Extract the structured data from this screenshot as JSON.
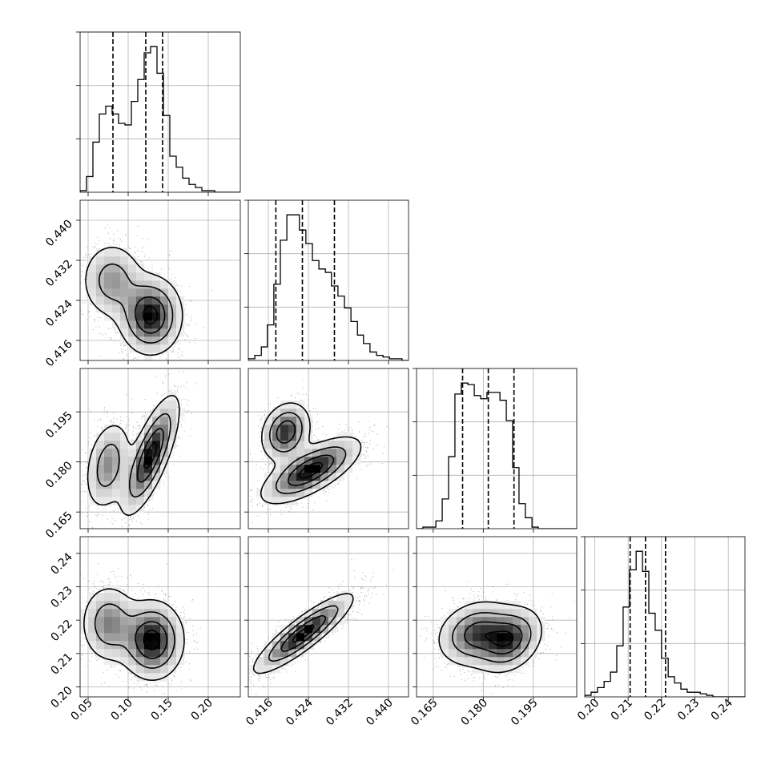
{
  "chart_data": {
    "type": "corner",
    "colors": {
      "line": "#000000",
      "grid": "#b0b0b0",
      "scatter": "#000000"
    },
    "grid": true,
    "parameters": [
      {
        "range": [
          0.04,
          0.24
        ],
        "ticks": [
          0.05,
          0.1,
          0.15,
          0.2
        ],
        "tick_labels": [
          "0.05",
          "0.10",
          "0.15",
          "0.20"
        ]
      },
      {
        "range": [
          0.412,
          0.444
        ],
        "ticks": [
          0.416,
          0.424,
          0.432,
          0.44
        ],
        "tick_labels": [
          "0.416",
          "0.424",
          "0.432",
          "0.440"
        ]
      },
      {
        "range": [
          0.16,
          0.208
        ],
        "ticks": [
          0.165,
          0.18,
          0.195
        ],
        "tick_labels": [
          "0.165",
          "0.180",
          "0.195"
        ]
      },
      {
        "range": [
          0.197,
          0.245
        ],
        "ticks": [
          0.2,
          0.21,
          0.22,
          0.23,
          0.24
        ],
        "tick_labels": [
          "0.20",
          "0.21",
          "0.22",
          "0.23",
          "0.24"
        ]
      }
    ],
    "marginals": [
      {
        "bins": [
          0.04,
          0.048,
          0.056,
          0.064,
          0.072,
          0.08,
          0.088,
          0.096,
          0.104,
          0.112,
          0.12,
          0.128,
          0.136,
          0.144,
          0.152,
          0.16,
          0.168,
          0.176,
          0.184,
          0.192,
          0.2,
          0.208,
          0.216,
          0.224,
          0.232,
          0.24
        ],
        "counts": [
          1,
          10,
          32,
          50,
          55,
          50,
          44,
          43,
          58,
          72,
          89,
          93,
          76,
          49,
          23,
          16,
          9,
          5,
          3,
          1,
          1,
          0,
          0,
          0,
          0
        ],
        "quantiles": [
          0.081,
          0.122,
          0.143
        ]
      },
      {
        "bins": [
          0.412,
          0.4133,
          0.4146,
          0.4158,
          0.4171,
          0.4184,
          0.4197,
          0.421,
          0.4222,
          0.4235,
          0.4248,
          0.4261,
          0.4274,
          0.4286,
          0.4299,
          0.4312,
          0.4325,
          0.4338,
          0.435,
          0.4363,
          0.4376,
          0.4389,
          0.4402,
          0.4414,
          0.4427,
          0.444
        ],
        "counts": [
          1,
          3,
          8,
          21,
          45,
          71,
          86,
          86,
          77,
          69,
          59,
          54,
          52,
          44,
          38,
          31,
          23,
          15,
          10,
          5,
          3,
          2,
          1,
          1,
          0
        ],
        "quantiles": [
          0.4175,
          0.4228,
          0.4292
        ]
      },
      {
        "bins": [
          0.16,
          0.1619,
          0.1638,
          0.1658,
          0.1677,
          0.1696,
          0.1715,
          0.1734,
          0.1754,
          0.1773,
          0.1792,
          0.1811,
          0.183,
          0.185,
          0.1869,
          0.1888,
          0.1907,
          0.1926,
          0.1946,
          0.1965,
          0.1984,
          0.2003,
          0.2022,
          0.2042,
          0.2061,
          0.208
        ],
        "counts": [
          0,
          1,
          1,
          5,
          19,
          46,
          86,
          93,
          92,
          85,
          83,
          87,
          87,
          82,
          69,
          39,
          16,
          7,
          1,
          0,
          0,
          0,
          0,
          0,
          0
        ],
        "quantiles": [
          0.1738,
          0.1815,
          0.1892
        ]
      },
      {
        "bins": [
          0.197,
          0.1989,
          0.2008,
          0.2028,
          0.2047,
          0.2066,
          0.2085,
          0.2104,
          0.2124,
          0.2143,
          0.2162,
          0.2181,
          0.22,
          0.222,
          0.2239,
          0.2258,
          0.2277,
          0.2296,
          0.2316,
          0.2335,
          0.2354,
          0.2373,
          0.2392,
          0.2412,
          0.2431,
          0.245
        ],
        "counts": [
          1,
          3,
          6,
          10,
          16,
          33,
          58,
          82,
          94,
          81,
          54,
          43,
          25,
          13,
          9,
          5,
          3,
          3,
          2,
          1,
          0,
          0,
          0,
          0,
          0
        ],
        "quantiles": [
          0.2106,
          0.2152,
          0.2212
        ]
      }
    ],
    "joint": [
      {
        "x": 0,
        "y": 1,
        "modes": [
          {
            "w": 0.35,
            "mx": [
              0.08,
              0.428
            ],
            "sx": [
              0.02,
              0.004
            ],
            "r": 0.0
          },
          {
            "w": 0.65,
            "mx": [
              0.128,
              0.421
            ],
            "sx": [
              0.02,
              0.004
            ],
            "r": 0.0
          }
        ]
      },
      {
        "x": 0,
        "y": 2,
        "modes": [
          {
            "w": 0.35,
            "mx": [
              0.075,
              0.179
            ],
            "sx": [
              0.015,
              0.007
            ],
            "r": 0.3
          },
          {
            "w": 0.65,
            "mx": [
              0.128,
              0.182
            ],
            "sx": [
              0.018,
              0.009
            ],
            "r": 0.75
          }
        ]
      },
      {
        "x": 0,
        "y": 3,
        "modes": [
          {
            "w": 0.35,
            "mx": [
              0.076,
              0.219
            ],
            "sx": [
              0.018,
              0.006
            ],
            "r": 0.0
          },
          {
            "w": 0.65,
            "mx": [
              0.13,
              0.214
            ],
            "sx": [
              0.02,
              0.006
            ],
            "r": 0.0
          }
        ]
      },
      {
        "x": 1,
        "y": 2,
        "modes": [
          {
            "w": 0.35,
            "mx": [
              0.4195,
              0.189
            ],
            "sx": [
              0.0025,
              0.0045
            ],
            "r": 0.2
          },
          {
            "w": 0.65,
            "mx": [
              0.4245,
              0.1775
            ],
            "sx": [
              0.005,
              0.005
            ],
            "r": 0.7
          }
        ]
      },
      {
        "x": 1,
        "y": 3,
        "modes": [
          {
            "w": 1.0,
            "mx": [
              0.423,
              0.216
            ],
            "sx": [
              0.005,
              0.006
            ],
            "r": 0.88
          }
        ]
      },
      {
        "x": 2,
        "y": 3,
        "modes": [
          {
            "w": 0.55,
            "mx": [
              0.178,
              0.216
            ],
            "sx": [
              0.006,
              0.005
            ],
            "r": 0.2
          },
          {
            "w": 0.45,
            "mx": [
              0.188,
              0.214
            ],
            "sx": [
              0.005,
              0.005
            ],
            "r": 0.3
          }
        ]
      }
    ]
  }
}
